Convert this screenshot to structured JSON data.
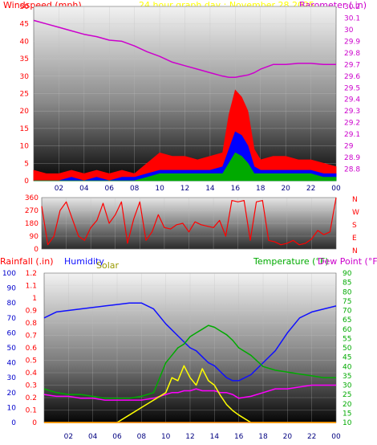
{
  "header": {
    "wind_label": "Windspeed (mph)",
    "title": "24 hour graph day : November 28 2025",
    "baro_label": "Barometer (.in)",
    "rain_label": "Rainfall (.in)",
    "humidity_label": "Humidity",
    "solar_label": "Solar",
    "temp_label": "Temperature (°F)",
    "dew_label": "Dew Point (°F)"
  },
  "colors": {
    "wind_label": "#ff0000",
    "title": "#ffff00",
    "baro": "#cc00cc",
    "rain_label": "#ff0000",
    "humidity": "#1010ff",
    "solar": "#ffff00",
    "solar_label": "#999900",
    "temp": "#00aa00",
    "dew_label": "#cc00cc",
    "dew": "#ff00ff",
    "wind_gust": "#ff0000",
    "wind_avg": "#0000ff",
    "wind_low": "#00aa00",
    "wind_dir": "#ff0000"
  },
  "time_ticks": [
    "02",
    "04",
    "06",
    "08",
    "10",
    "12",
    "14",
    "16",
    "18",
    "20",
    "22",
    "00"
  ],
  "chart_data": [
    {
      "type": "line",
      "name": "wind-baro",
      "x": [
        0,
        1,
        2,
        3,
        4,
        5,
        6,
        7,
        8,
        9,
        10,
        11,
        12,
        13,
        14,
        15,
        15.5,
        16,
        16.5,
        17,
        17.5,
        18,
        19,
        20,
        21,
        22,
        23,
        24
      ],
      "series": [
        {
          "name": "Windspeed gust",
          "values": [
            3,
            2,
            2,
            3,
            2,
            3,
            2,
            3,
            2,
            5,
            8,
            7,
            7,
            6,
            7,
            8,
            19,
            26,
            24,
            20,
            9,
            6,
            7,
            7,
            6,
            6,
            5,
            4
          ]
        },
        {
          "name": "Windspeed",
          "values": [
            0,
            0,
            0,
            1,
            0,
            1,
            0,
            1,
            1,
            2,
            3,
            3,
            3,
            3,
            3,
            4,
            9,
            14,
            13,
            10,
            4,
            3,
            3,
            3,
            3,
            3,
            2,
            2
          ]
        },
        {
          "name": "Windspeed low",
          "values": [
            0,
            0,
            0,
            0,
            0,
            0,
            0,
            0,
            0,
            1,
            2,
            2,
            2,
            2,
            2,
            2,
            5,
            8,
            7,
            5,
            2,
            2,
            2,
            2,
            2,
            2,
            1,
            1
          ]
        }
      ],
      "baro_values": [
        30.08,
        30.05,
        30.02,
        29.99,
        29.96,
        29.94,
        29.91,
        29.9,
        29.86,
        29.81,
        29.77,
        29.72,
        29.69,
        29.66,
        29.63,
        29.6,
        29.59,
        29.59,
        29.6,
        29.61,
        29.63,
        29.66,
        29.7,
        29.7,
        29.71,
        29.71,
        29.7,
        29.7
      ],
      "ylim_left": [
        0,
        50
      ],
      "ylim_right": [
        28.7,
        30.2
      ],
      "left_ticks": [
        "0",
        "5",
        "10",
        "15",
        "20",
        "25",
        "30",
        "35",
        "40",
        "45",
        "50"
      ],
      "right_ticks": [
        "28.8",
        "28.9",
        "29",
        "29.1",
        "29.2",
        "29.3",
        "29.4",
        "29.5",
        "29.6",
        "29.7",
        "29.8",
        "29.9",
        "30",
        "30.1",
        "30.2"
      ]
    },
    {
      "type": "line",
      "name": "wind-direction",
      "x": [
        0,
        0.5,
        1,
        1.5,
        2,
        2.5,
        3,
        3.5,
        4,
        4.5,
        5,
        5.5,
        6,
        6.5,
        7,
        7.5,
        8,
        8.5,
        9,
        9.5,
        10,
        10.5,
        11,
        11.5,
        12,
        12.5,
        13,
        13.5,
        14,
        14.5,
        15,
        15.5,
        16,
        16.5,
        17,
        17.5,
        18,
        18.5,
        19,
        19.5,
        20,
        20.5,
        21,
        21.5,
        22,
        22.5,
        23,
        23.5,
        24
      ],
      "values": [
        300,
        30,
        90,
        270,
        330,
        210,
        90,
        60,
        150,
        200,
        320,
        180,
        240,
        330,
        40,
        210,
        330,
        60,
        120,
        240,
        150,
        140,
        170,
        180,
        120,
        190,
        170,
        160,
        150,
        200,
        90,
        340,
        330,
        340,
        60,
        330,
        340,
        60,
        50,
        30,
        40,
        60,
        30,
        40,
        70,
        130,
        100,
        120,
        360
      ],
      "ylim": [
        0,
        360
      ],
      "left_ticks": [
        "0",
        "90",
        "180",
        "270",
        "360"
      ],
      "right_ticks": [
        "N",
        "W",
        "S",
        "E",
        "N"
      ]
    },
    {
      "type": "line",
      "name": "rain-humidity-solar-temp",
      "x": [
        0,
        1,
        2,
        3,
        4,
        5,
        6,
        7,
        8,
        9,
        10,
        10.5,
        11,
        11.5,
        12,
        12.5,
        13,
        13.5,
        14,
        14.5,
        15,
        15.5,
        16,
        17,
        18,
        19,
        20,
        21,
        22,
        23,
        24
      ],
      "series": [
        {
          "name": "Humidity",
          "values": [
            70,
            74,
            75,
            76,
            77,
            78,
            79,
            80,
            80,
            76,
            66,
            62,
            58,
            54,
            50,
            48,
            44,
            40,
            38,
            34,
            30,
            28,
            28,
            32,
            40,
            48,
            60,
            70,
            74,
            76,
            78
          ]
        },
        {
          "name": "Temperature",
          "values": [
            28,
            26,
            25,
            25,
            24,
            23,
            23,
            23,
            24,
            26,
            42,
            46,
            50,
            52,
            56,
            58,
            60,
            62,
            61,
            59,
            57,
            54,
            50,
            46,
            40,
            38,
            37,
            36,
            35,
            34,
            34
          ]
        },
        {
          "name": "Dew Point",
          "values": [
            25,
            24,
            24,
            23,
            23,
            22,
            22,
            22,
            22,
            23,
            25,
            26,
            26,
            27,
            27,
            28,
            27,
            27,
            27,
            26,
            26,
            25,
            23,
            24,
            26,
            28,
            28,
            29,
            30,
            30,
            30
          ]
        },
        {
          "name": "Solar",
          "values": [
            0,
            0,
            0,
            0,
            0,
            0,
            0,
            5,
            10,
            15,
            20,
            30,
            28,
            38,
            30,
            25,
            36,
            28,
            25,
            18,
            12,
            8,
            5,
            0,
            0,
            0,
            0,
            0,
            0,
            0,
            0
          ]
        },
        {
          "name": "Rainfall",
          "values": [
            0,
            0,
            0,
            0,
            0,
            0,
            0,
            0,
            0,
            0,
            0,
            0,
            0,
            0,
            0,
            0,
            0,
            0,
            0,
            0,
            0,
            0,
            0,
            0,
            0,
            0,
            0,
            0,
            0,
            0,
            0
          ]
        }
      ],
      "ylim_left_outer": [
        0,
        100
      ],
      "ylim_left_inner": [
        0,
        1.2
      ],
      "ylim_right": [
        10,
        90
      ],
      "outer_ticks": [
        "0",
        "10",
        "20",
        "30",
        "40",
        "50",
        "60",
        "70",
        "80",
        "90",
        "100"
      ],
      "inner_ticks": [
        "0",
        "0.1",
        "0.2",
        "0.3",
        "0.4",
        "0.5",
        "0.6",
        "0.7",
        "0.8",
        "0.9",
        "1",
        "1.1",
        "1.2"
      ],
      "right_ticks": [
        "10",
        "15",
        "20",
        "25",
        "30",
        "35",
        "40",
        "45",
        "50",
        "55",
        "60",
        "65",
        "70",
        "75",
        "80",
        "85",
        "90"
      ]
    }
  ]
}
